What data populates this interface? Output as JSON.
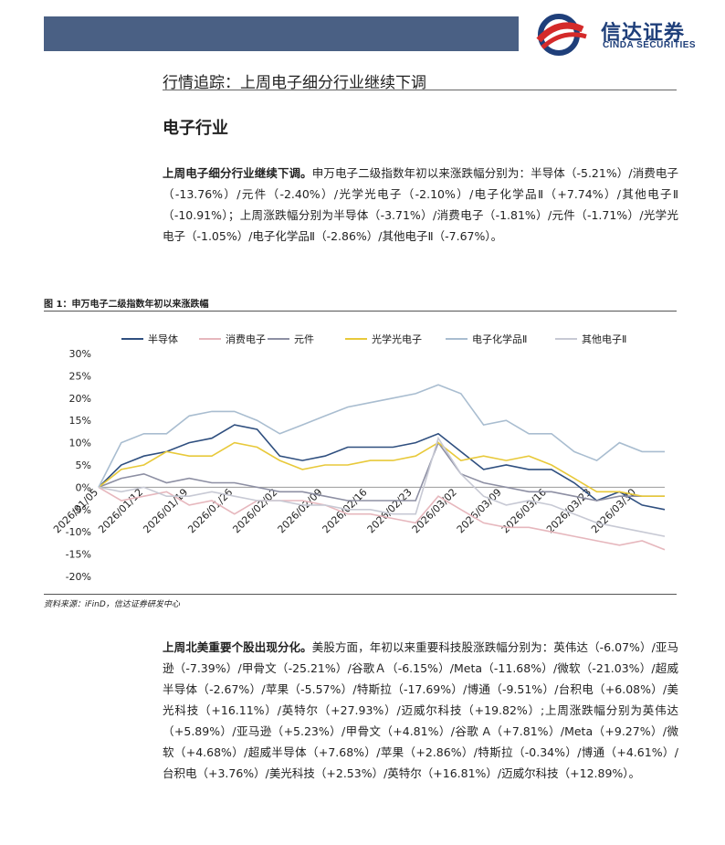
{
  "header": {
    "logo_cn": "信达证券",
    "logo_en": "CINDA SECURITIES",
    "section_title": "行情追踪：上周电子细分行业继续下调"
  },
  "heading": "电子行业",
  "para1": {
    "lead": "上周电子细分行业继续下调。",
    "body": "申万电子二级指数年初以来涨跌幅分别为：半导体（-5.21%）/消费电子（-13.76%）/元件（-2.40%）/光学光电子（-2.10%）/电子化学品Ⅱ（+7.74%）/其他电子Ⅱ（-10.91%）；上周涨跌幅分别为半导体（-3.71%）/消费电子（-1.81%）/元件（-1.71%）/光学光电子（-1.05%）/电子化学品Ⅱ（-2.86%）/其他电子Ⅱ（-7.67%）。"
  },
  "figure": {
    "title": "图 1：申万电子二级指数年初以来涨跌幅",
    "source": "资料来源：iFinD，信达证券研发中心"
  },
  "para2": {
    "lead": "上周北美重要个股出现分化。",
    "body": "美股方面，年初以来重要科技股涨跌幅分别为：英伟达（-6.07%）/亚马逊（-7.39%）/甲骨文（-25.21%）/谷歌Ａ（-6.15%）/Meta（-11.68%）/微软（-21.03%）/超威半导体（-2.67%）/苹果（-5.57%）/特斯拉（-17.69%）/博通（-9.51%）/台积电（+6.08%）/美光科技（+16.11%）/英特尔（+27.93%）/迈威尔科技（+19.82%）;上周涨跌幅分别为英伟达（+5.89%）/亚马逊（+5.23%）/甲骨文（+4.81%）/谷歌 A（+7.81%）/Meta（+9.27%）/微软（+4.68%）/超威半导体（+7.68%）/苹果（+2.86%）/特斯拉（-0.34%）/博通（+4.61%）/台积电（+3.76%）/美光科技（+2.53%）/英特尔（+16.81%）/迈威尔科技（+12.89%）。"
  },
  "chart_data": {
    "type": "line",
    "title": "",
    "xlabel": "",
    "ylabel": "",
    "ylim": [
      -20,
      30
    ],
    "y_ticks": [
      "30%",
      "25%",
      "20%",
      "15%",
      "10%",
      "5%",
      "0%",
      "-5%",
      "-10%",
      "-15%",
      "-20%"
    ],
    "x_tick_labels": [
      "2026/01/05",
      "2026/01/12",
      "2026/01/19",
      "2026/01/26",
      "2026/02/02",
      "2026/02/09",
      "2026/02/16",
      "2026/02/23",
      "2026/03/02",
      "2026/03/09",
      "2026/03/16",
      "2026/03/23",
      "2026/03/30"
    ],
    "legend_position": "top",
    "grid": false,
    "x": [
      "01/05",
      "01/08",
      "01/12",
      "01/15",
      "01/19",
      "01/22",
      "01/26",
      "01/29",
      "02/02",
      "02/05",
      "02/09",
      "02/12",
      "02/16",
      "02/19",
      "02/23",
      "02/26",
      "03/02",
      "03/05",
      "03/09",
      "03/12",
      "03/16",
      "03/19",
      "03/23",
      "03/26",
      "03/30",
      "04/02"
    ],
    "series": [
      {
        "name": "半导体",
        "color": "#2f4f7f",
        "values": [
          0,
          5,
          7,
          8,
          10,
          11,
          14,
          13,
          7,
          6,
          7,
          9,
          9,
          9,
          10,
          12,
          8,
          4,
          5,
          4,
          4,
          1,
          -3,
          -1,
          -4,
          -5
        ]
      },
      {
        "name": "消费电子",
        "color": "#e6b7bd",
        "values": [
          0,
          -3,
          -2,
          -1,
          -4,
          -3,
          -6,
          -3,
          -3,
          -3,
          -4,
          -6,
          -6,
          -7,
          -8,
          -2,
          -5,
          -8,
          -9,
          -9,
          -10,
          -11,
          -12,
          -13,
          -12,
          -14
        ]
      },
      {
        "name": "元件",
        "color": "#8d8fa3",
        "values": [
          0,
          2,
          3,
          1,
          2,
          1,
          1,
          0,
          -1,
          -1,
          -2,
          -3,
          -3,
          -3,
          -3,
          10,
          3,
          1,
          0,
          -1,
          -1,
          -2,
          -3,
          -2,
          -2,
          -2
        ]
      },
      {
        "name": "光学光电子",
        "color": "#e8c93a",
        "values": [
          0,
          4,
          5,
          8,
          7,
          7,
          10,
          9,
          6,
          4,
          5,
          5,
          6,
          6,
          7,
          10,
          6,
          7,
          6,
          7,
          5,
          2,
          -1,
          -1,
          -2,
          -2
        ]
      },
      {
        "name": "电子化学品Ⅱ",
        "color": "#a9bdd0",
        "values": [
          0,
          10,
          12,
          12,
          16,
          17,
          17,
          15,
          12,
          14,
          16,
          18,
          19,
          20,
          21,
          23,
          21,
          14,
          15,
          12,
          12,
          8,
          6,
          10,
          8,
          8
        ]
      },
      {
        "name": "其他电子Ⅱ",
        "color": "#c7c9d4",
        "values": [
          0,
          -1,
          0,
          -2,
          -2,
          -1,
          -2,
          -3,
          -3,
          -4,
          -4,
          -5,
          -5,
          -6,
          -6,
          11,
          3,
          -2,
          -4,
          -3,
          -4,
          -6,
          -8,
          -9,
          -10,
          -11
        ]
      }
    ]
  }
}
